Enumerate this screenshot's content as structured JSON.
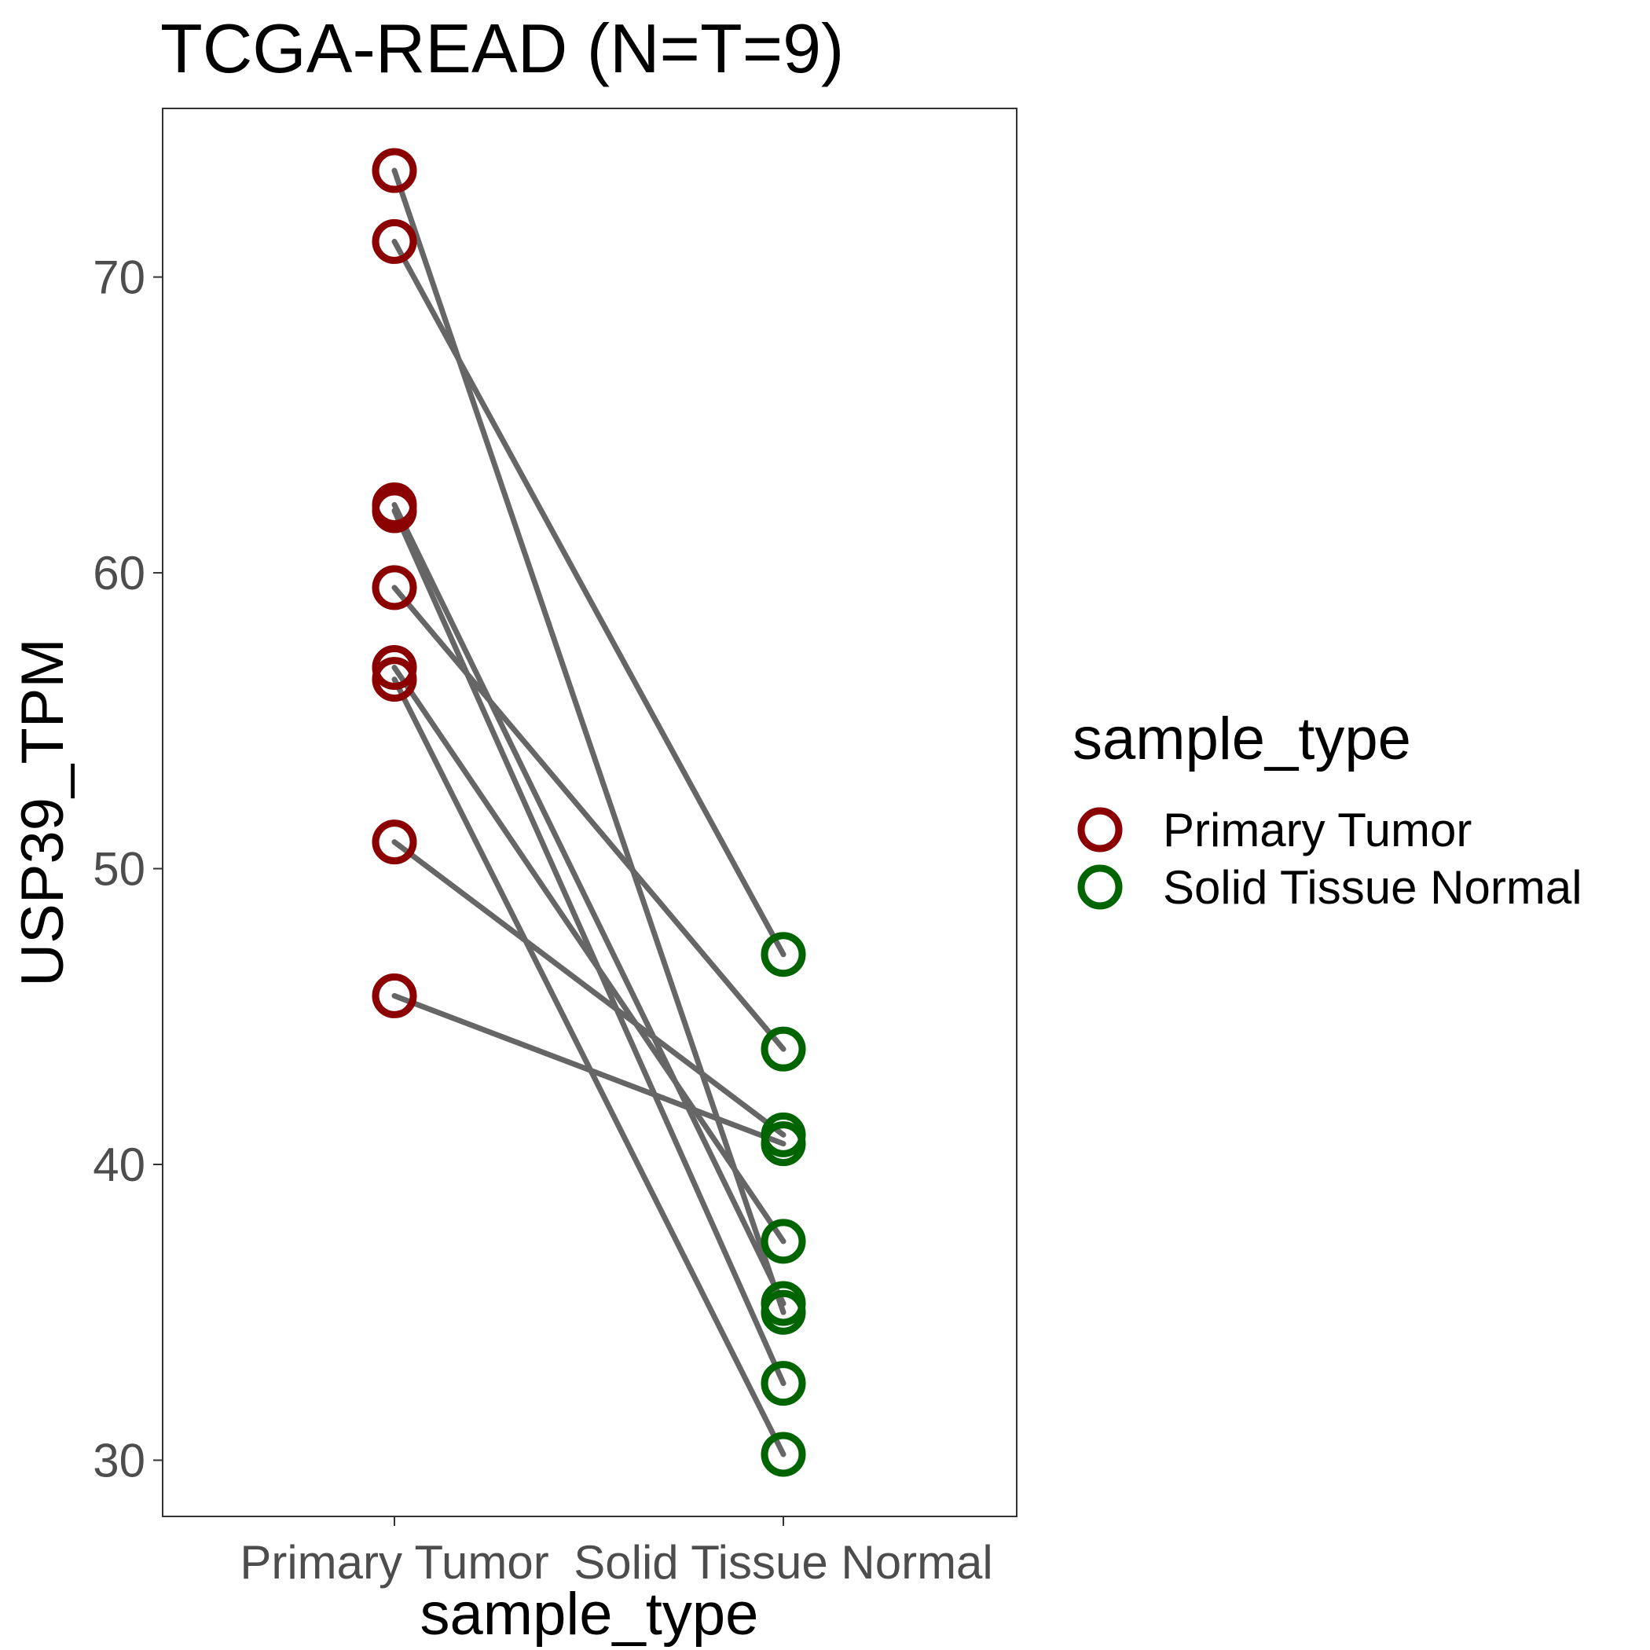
{
  "chart_data": {
    "type": "line",
    "title": "TCGA-READ  (N=T=9)",
    "xlabel": "sample_type",
    "ylabel": "USP39_TPM",
    "categories": [
      "Primary Tumor",
      "Solid Tissue Normal"
    ],
    "ylim": [
      28.1,
      75.7
    ],
    "yticks": [
      30,
      40,
      50,
      60,
      70
    ],
    "grid": false,
    "legend": {
      "title": "sample_type",
      "position": "right",
      "entries": [
        {
          "label": "Primary Tumor",
          "color": "#8b0000"
        },
        {
          "label": "Solid Tissue Normal",
          "color": "#006400"
        }
      ]
    },
    "colors": {
      "line": "#666666",
      "tumor": "#8b0000",
      "normal": "#006400",
      "tick": "#4d4d4d"
    },
    "pairs": [
      {
        "tumor": 73.6,
        "normal": 35.0
      },
      {
        "tumor": 71.2,
        "normal": 47.1
      },
      {
        "tumor": 62.3,
        "normal": 35.3
      },
      {
        "tumor": 62.1,
        "normal": 32.6
      },
      {
        "tumor": 59.5,
        "normal": 43.9
      },
      {
        "tumor": 56.8,
        "normal": 37.4
      },
      {
        "tumor": 56.4,
        "normal": 30.2
      },
      {
        "tumor": 50.9,
        "normal": 41.0
      },
      {
        "tumor": 45.7,
        "normal": 40.7
      }
    ]
  }
}
